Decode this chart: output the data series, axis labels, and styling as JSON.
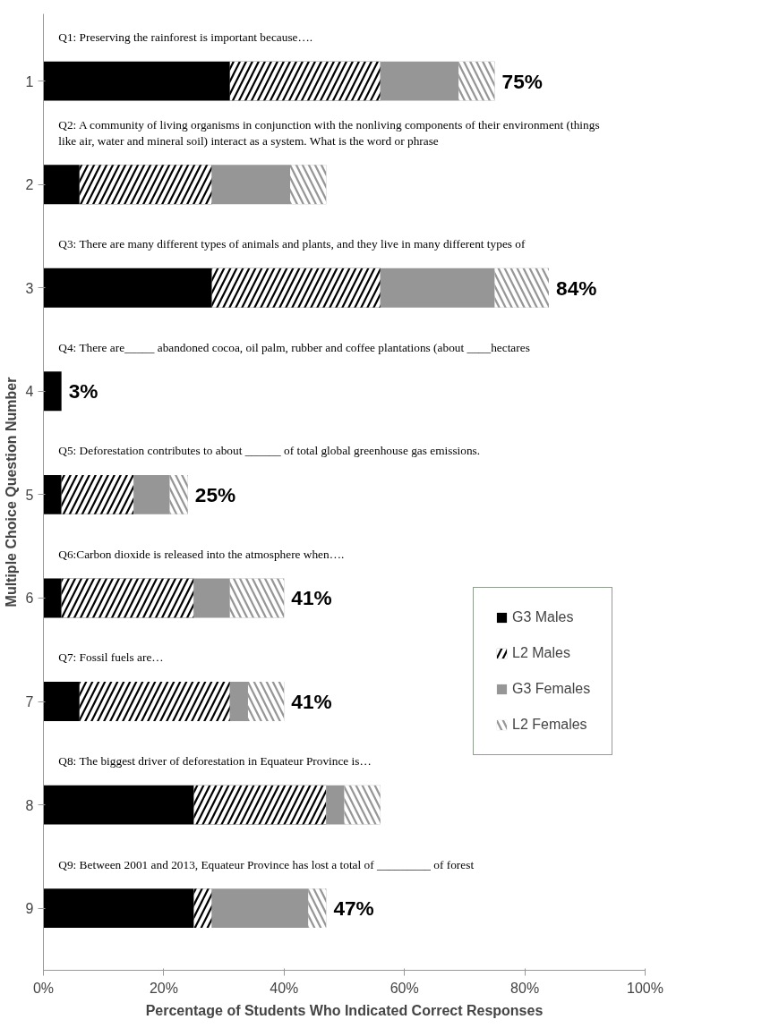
{
  "chart_data": {
    "type": "bar",
    "orientation": "horizontal",
    "stacked": true,
    "categories": [
      "1",
      "2",
      "3",
      "4",
      "5",
      "6",
      "7",
      "8",
      "9"
    ],
    "series": [
      {
        "name": "G3 Males",
        "color": "#000000",
        "values": [
          31,
          6,
          28,
          3,
          3,
          3,
          6,
          25,
          25
        ]
      },
      {
        "name": "L2 Males",
        "color": "#000000",
        "values": [
          25,
          22,
          28,
          0,
          12,
          22,
          25,
          22,
          3
        ]
      },
      {
        "name": "G3 Females",
        "color": "#969696",
        "values": [
          13,
          13,
          19,
          0,
          6,
          6,
          3,
          3,
          16
        ]
      },
      {
        "name": "L2 Females",
        "color": "#969696",
        "values": [
          6,
          6,
          9,
          0,
          3,
          9,
          6,
          6,
          3
        ]
      }
    ],
    "totals": [
      "75%",
      null,
      "84%",
      "3%",
      "25%",
      "41%",
      "41%",
      null,
      "47%"
    ],
    "annotations": [
      "Q1: Preserving the rainforest is important because….",
      "Q2: A community of living organisms in conjunction with the nonliving components of their environment (things like air, water and mineral soil) interact as a system. What is the word or phrase",
      "Q3: There are many different types of animals and plants, and they live in many different types of",
      "Q4: There are_____ abandoned cocoa, oil palm, rubber and coffee plantations (about ____hectares",
      "Q5: Deforestation contributes to about ______ of total global greenhouse gas emissions.",
      "Q6:Carbon dioxide is released into the atmosphere when….",
      "Q7: Fossil fuels are…",
      "Q8: The biggest driver of deforestation in Equateur Province is…",
      "Q9: Between 2001 and 2013, Equateur Province has lost a total of _________ of forest"
    ],
    "xlabel": "Percentage of Students Who Indicated Correct Responses",
    "ylabel": "Multiple Choice Question Number",
    "xlim": [
      0,
      100
    ],
    "xticks": [
      {
        "value": 0,
        "label": "0%"
      },
      {
        "value": 20,
        "label": "20%"
      },
      {
        "value": 40,
        "label": "40%"
      },
      {
        "value": 60,
        "label": "60%"
      },
      {
        "value": 80,
        "label": "80%"
      },
      {
        "value": 100,
        "label": "100%"
      }
    ],
    "grid": false,
    "legend": "right"
  }
}
